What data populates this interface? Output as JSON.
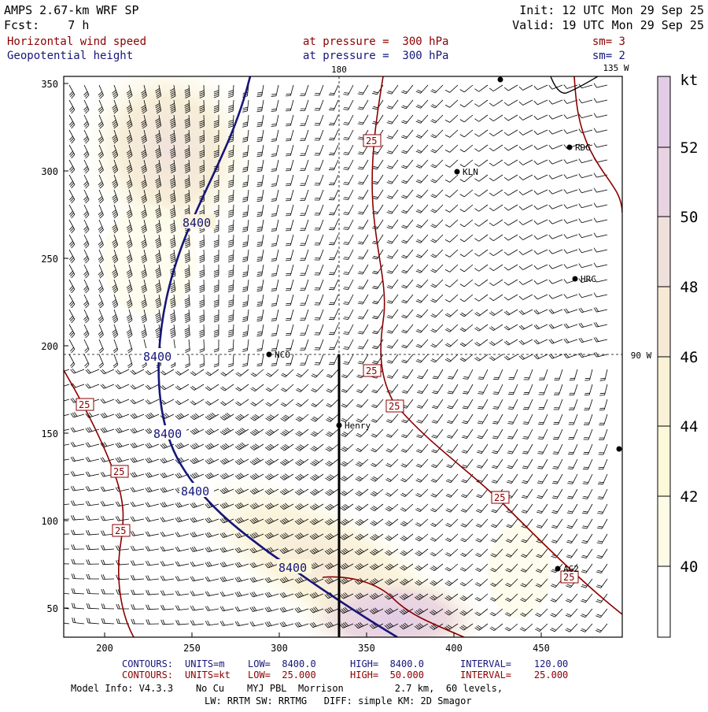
{
  "header": {
    "model": "AMPS 2.67-km WRF SP",
    "forecast": "Fcst:    7 h",
    "init": "Init: 12 UTC Mon 29 Sep 25",
    "valid": "Valid: 19 UTC Mon 29 Sep 25",
    "field1_name": "Horizontal wind speed",
    "field1_level": "at pressure =  300 hPa",
    "field1_sm": "sm= 3",
    "field2_name": "Geopotential height",
    "field2_level": "at pressure =  300 hPa",
    "field2_sm": "sm= 2"
  },
  "map": {
    "x_ticks": [
      "200",
      "250",
      "300",
      "350",
      "400",
      "450"
    ],
    "y_ticks": [
      "350",
      "300",
      "250",
      "200",
      "150",
      "100",
      "50"
    ],
    "meridian_180": "180",
    "meridian_135w": "135 W",
    "meridian_90w": "90 W",
    "stations": [
      {
        "name": "KLN"
      },
      {
        "name": "RDG"
      },
      {
        "name": "HRC"
      },
      {
        "name": "NCO"
      },
      {
        "name": "Henry"
      },
      {
        "name": "AG2"
      }
    ],
    "height_contour_label": "8400",
    "speed_contour_label": "25",
    "colors": {
      "height_contour": "#16167a",
      "speed_contour": "#8b0000",
      "cross_section": "#000000"
    }
  },
  "colorbar": {
    "unit": "kt",
    "labels": [
      "52",
      "50",
      "48",
      "46",
      "44",
      "42",
      "40"
    ],
    "colors": [
      "#e2cce6",
      "#e8d3e2",
      "#f0e0dc",
      "#f6ead7",
      "#faf2d6",
      "#fcf8da",
      "#fdfbe6",
      "#ffffff"
    ]
  },
  "footer": {
    "contours1_label": "CONTOURS:",
    "contours1_units": "UNITS=m",
    "contours1_low": "LOW=  8400.0",
    "contours1_high": "HIGH=  8400.0",
    "contours1_interval": "INTERVAL=    120.00",
    "contours2_label": "CONTOURS:",
    "contours2_units": "UNITS=kt",
    "contours2_low": "LOW=  25.000",
    "contours2_high": "HIGH=  50.000",
    "contours2_interval": "INTERVAL=    25.000",
    "model_info": "Model Info: V4.3.3    No Cu    MYJ PBL  Morrison         2.7 km,  60 levels,",
    "physics_info": "LW: RRTM SW: RRTMG   DIFF: simple KM: 2D Smagor"
  }
}
